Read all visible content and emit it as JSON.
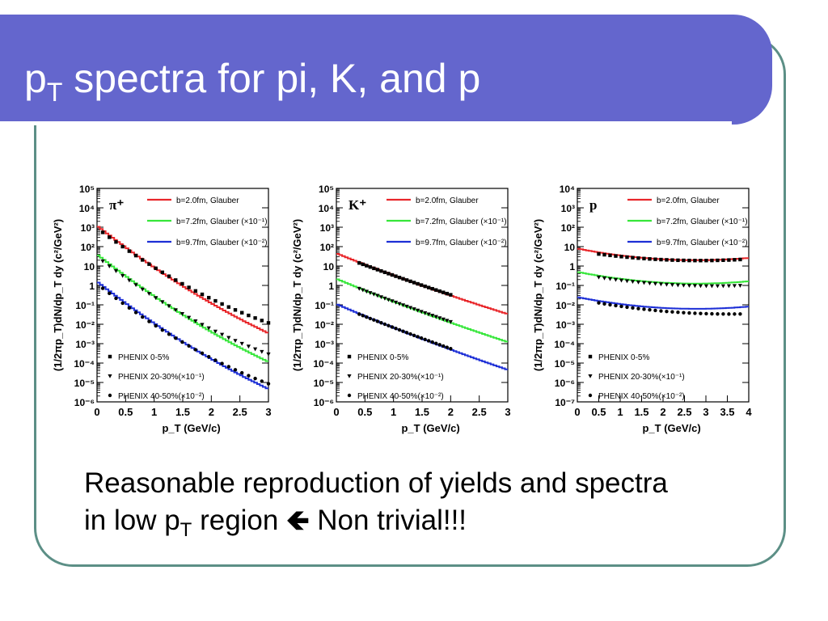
{
  "slide": {
    "title_main": "p",
    "title_sub": "T",
    "title_rest": " spectra for pi, K, and p",
    "caption_line1": "Reasonable reproduction of yields and spectra",
    "caption_line2_a": "in low p",
    "caption_line2_sub": "T",
    "caption_line2_b": " region ",
    "caption_arrow": "🡸",
    "caption_line2_c": " Non trivial!!!",
    "colors": {
      "title_bar": "#6466cd",
      "frame": "#5c8f86",
      "red": "#e8262a",
      "green": "#36e63a",
      "blue": "#1d2fd6"
    }
  },
  "chart_data": [
    {
      "type": "line",
      "particle_label": "π⁺",
      "xlabel": "p_T (GeV/c)",
      "ylabel": "(1/2πp_T)dN/dp_T dy (c²/GeV²)",
      "xlim": [
        0,
        3
      ],
      "ylim_exp": [
        -6,
        5
      ],
      "yscale": "log",
      "x_ticks": [
        "0",
        "0.5",
        "1",
        "1.5",
        "2",
        "2.5",
        "3"
      ],
      "legend": [
        "b=2.0fm, Glauber",
        "b=7.2fm, Glauber (×10⁻¹)",
        "b=9.7fm, Glauber (×10⁻²)"
      ],
      "marker_legend": [
        "PHENIX 0-5%",
        "PHENIX 20-30%(×10⁻¹)",
        "PHENIX 40-50%(×10⁻²)"
      ],
      "model": {
        "y0": [
          1200,
          40,
          1.6
        ],
        "slope": [
          5.3,
          5.3,
          5.3
        ],
        "curv": [
          0.35,
          0.35,
          0.35
        ]
      },
      "data": {
        "x": [
          0.1,
          3.0
        ],
        "y0": [
          900,
          30,
          1.2
        ],
        "slope": [
          5.1,
          5.2,
          5.3
        ],
        "curv": [
          0.45,
          0.45,
          0.45
        ]
      }
    },
    {
      "type": "line",
      "particle_label": "K⁺",
      "xlabel": "p_T (GeV/c)",
      "ylabel": "(1/2πp_T)dN/dp_T dy (c²/GeV²)",
      "xlim": [
        0,
        3
      ],
      "ylim_exp": [
        -6,
        5
      ],
      "yscale": "log",
      "x_ticks": [
        "0",
        "0.5",
        "1",
        "1.5",
        "2",
        "2.5",
        "3"
      ],
      "legend": [
        "b=2.0fm, Glauber",
        "b=7.2fm, Glauber (×10⁻¹)",
        "b=9.7fm, Glauber (×10⁻²)"
      ],
      "marker_legend": [
        "PHENIX 0-5%",
        "PHENIX 20-30%(×10⁻¹)",
        "PHENIX 40-50%(×10⁻²)"
      ],
      "model": {
        "y0": [
          45,
          2.2,
          0.11
        ],
        "slope": [
          2.7,
          2.8,
          2.9
        ],
        "curv": [
          0.1,
          0.1,
          0.1
        ]
      },
      "data": {
        "x": [
          0.4,
          2.0
        ],
        "y0": [
          40,
          2.0,
          0.1
        ],
        "slope": [
          2.6,
          2.7,
          2.8
        ],
        "curv": [
          0.1,
          0.1,
          0.1
        ]
      }
    },
    {
      "type": "line",
      "particle_label": "p",
      "xlabel": "p_T (GeV/c)",
      "ylabel": "(1/2πp_T)dN/dp_T dy (c²/GeV²)",
      "xlim": [
        0,
        4
      ],
      "ylim_exp": [
        -7,
        4
      ],
      "yscale": "log",
      "x_ticks": [
        "0",
        "0.5",
        "1",
        "1.5",
        "2",
        "2.5",
        "3",
        "3.5",
        "4"
      ],
      "legend": [
        "b=2.0fm, Glauber",
        "b=7.2fm, Glauber (×10⁻¹)",
        "b=9.7fm, Glauber (×10⁻²)"
      ],
      "marker_legend": [
        "PHENIX 0-5%",
        "PHENIX 20-30%(×10⁻¹)",
        "PHENIX 40-50%(×10⁻²)"
      ],
      "model": {
        "y0": [
          8,
          0.5,
          0.025
        ],
        "slope": [
          1.0,
          1.0,
          1.0
        ],
        "curv": [
          0.18,
          0.18,
          0.18
        ]
      },
      "data": {
        "x": [
          0.5,
          3.8
        ],
        "y0": [
          6,
          0.4,
          0.02
        ],
        "slope": [
          0.8,
          0.9,
          1.0
        ],
        "curv": [
          0.14,
          0.14,
          0.14
        ]
      }
    }
  ]
}
